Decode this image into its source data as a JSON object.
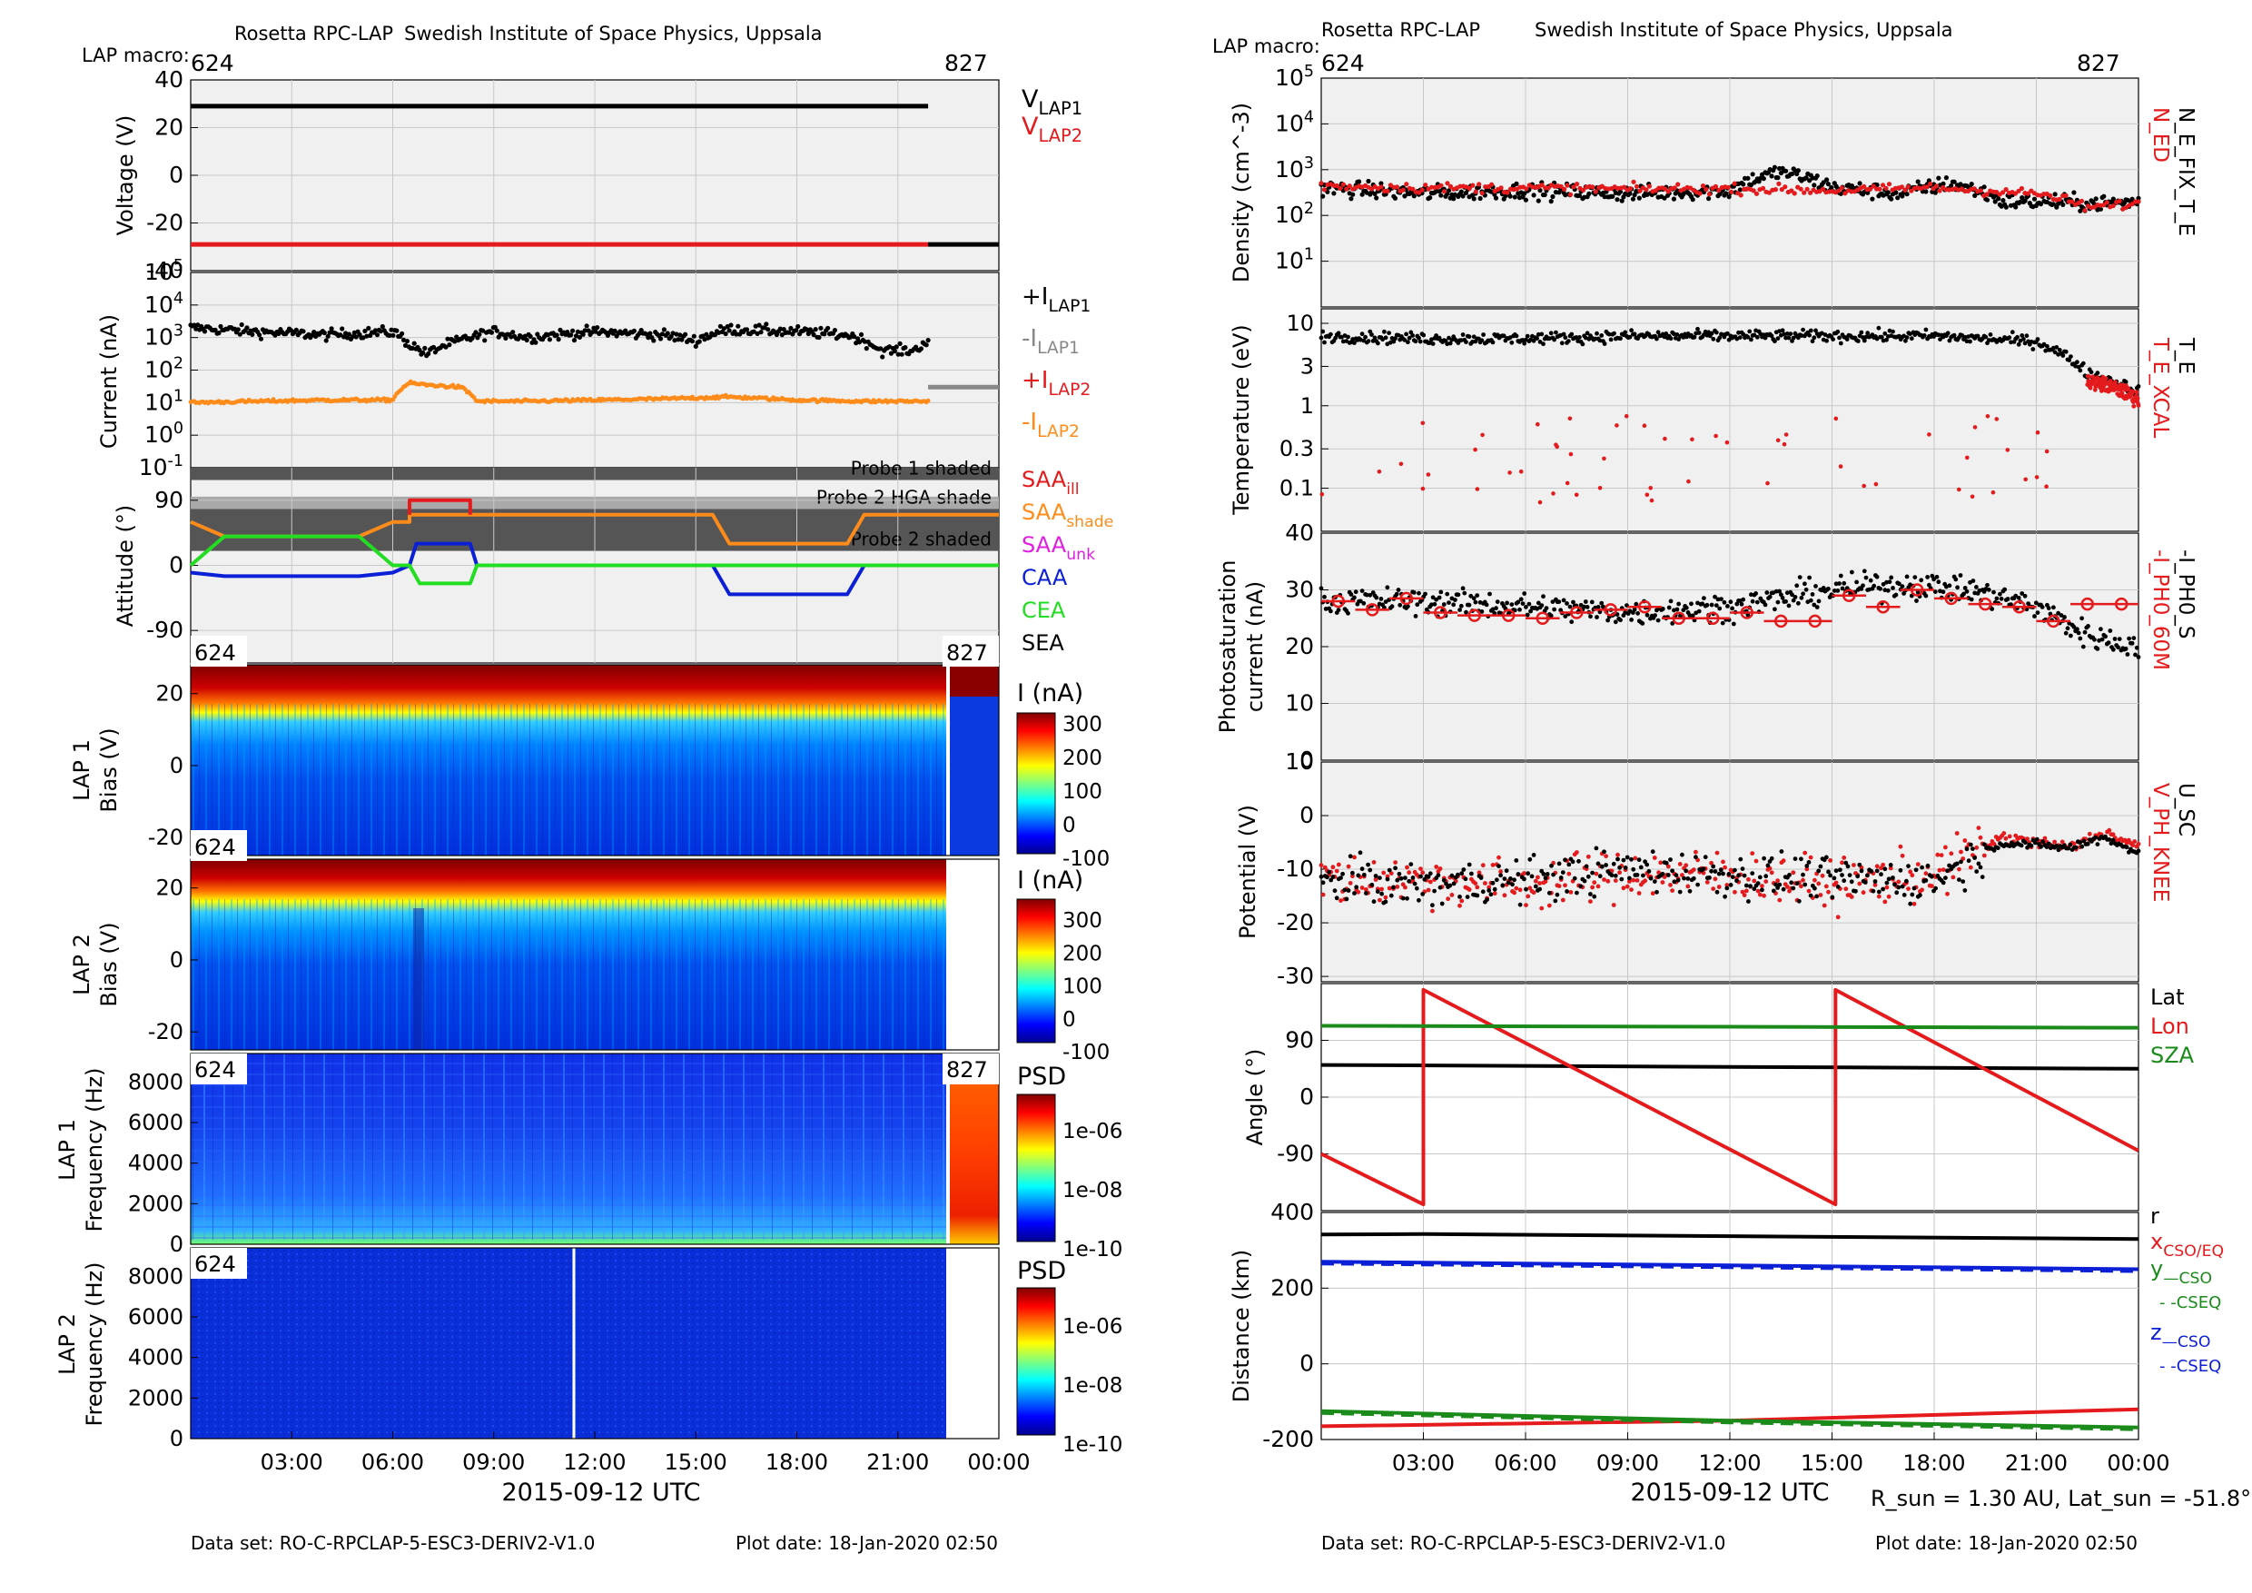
{
  "left": {
    "header_left": "Rosetta RPC-LAP",
    "header_right": "Swedish Institute of Space Physics, Uppsala",
    "macro_label": "LAP macro:",
    "macro_start": "624",
    "macro_end": "827",
    "footer_dataset": "Data set: RO-C-RPCLAP-5-ESC3-DERIV2-V1.0",
    "footer_date": "Plot date: 18-Jan-2020 02:50",
    "xlabel": "2015-09-12 UTC"
  },
  "right": {
    "header_left": "Rosetta RPC-LAP",
    "header_right": "Swedish Institute of Space Physics, Uppsala",
    "macro_label": "LAP macro:",
    "macro_start": "624",
    "macro_end": "827",
    "footer_dataset": "Data set: RO-C-RPCLAP-5-ESC3-DERIV2-V1.0",
    "footer_date": "Plot date: 18-Jan-2020 02:50",
    "xlabel": "2015-09-12 UTC",
    "rsun_text": "R_sun = 1.30 AU, Lat_sun = -51.8°"
  },
  "colors": {
    "black": "#000000",
    "red": "#e41a1c",
    "orange": "#ff8c1a",
    "gray": "#888888",
    "blue": "#0b1fd6",
    "green": "#22dd22",
    "darkgreen": "#1a8a1a",
    "magenta": "#e020e0",
    "panel_bg": "#f0f0f0",
    "shade_dark": "#555555",
    "shade_light": "#a9a9a9"
  },
  "chart_data": [
    {
      "type": "line",
      "id": "voltage",
      "ylabel": "Voltage (V)",
      "ylim": [
        -40,
        40
      ],
      "yticks": [
        "40",
        "20",
        "0",
        "-20",
        "-40"
      ],
      "xlim_hours": [
        0,
        24
      ],
      "xticks": [
        "03:00",
        "06:00",
        "09:00",
        "12:00",
        "15:00",
        "18:00",
        "21:00",
        "00:00"
      ],
      "grid": true,
      "legend": [
        {
          "main": "V",
          "sub": "LAP1",
          "color": "#000000"
        },
        {
          "main": "V",
          "sub": "LAP2",
          "color": "#e41a1c"
        }
      ],
      "series": [
        {
          "name": "V_LAP1",
          "color": "#000000",
          "x": [
            0,
            21.9
          ],
          "y": [
            29,
            29
          ]
        },
        {
          "name": "V_LAP2",
          "color": "#e41a1c",
          "x": [
            0,
            21.9
          ],
          "y": [
            -29,
            -29
          ]
        },
        {
          "name": "V_LAP2 (macro 827)",
          "color": "#000000",
          "x": [
            21.9,
            24
          ],
          "y": [
            -29,
            -29
          ]
        }
      ]
    },
    {
      "type": "scatter",
      "id": "current",
      "yscale": "log",
      "ylabel": "Current (nA)",
      "ylim": [
        0.1,
        100000
      ],
      "yticks": [
        "10^5",
        "10^4",
        "10^3",
        "10^2",
        "10^1",
        "10^0",
        "10^-1"
      ],
      "legend": [
        {
          "main": "+I",
          "sub": "LAP1",
          "color": "#000000"
        },
        {
          "main": "-I",
          "sub": "LAP1",
          "color": "#888888"
        },
        {
          "main": "+I",
          "sub": "LAP2",
          "color": "#e41a1c"
        },
        {
          "main": "-I",
          "sub": "LAP2",
          "color": "#ff8c1a"
        }
      ],
      "series": [
        {
          "name": "+I_LAP1",
          "color": "#000000",
          "x": [
            0,
            2,
            4,
            6,
            6.5,
            7,
            8,
            9,
            10,
            12,
            14,
            15,
            16,
            18,
            19.5,
            20.5,
            21.5,
            21.9
          ],
          "y": [
            2000,
            1500,
            1200,
            1500,
            600,
            300,
            800,
            1500,
            1000,
            1500,
            1200,
            800,
            1800,
            1500,
            1200,
            400,
            400,
            800
          ]
        },
        {
          "name": "-I_LAP2",
          "color": "#ff8c1a",
          "x": [
            0,
            2,
            4,
            6,
            6.5,
            7,
            8,
            8.5,
            10,
            12,
            14,
            16,
            18,
            20,
            21.9
          ],
          "y": [
            10,
            11,
            12,
            12,
            40,
            35,
            30,
            11,
            11,
            12,
            13,
            15,
            12,
            11,
            11
          ]
        },
        {
          "name": "-I_LAP1 (macro 827)",
          "color": "#888888",
          "x": [
            21.9,
            24
          ],
          "y": [
            30,
            30
          ]
        }
      ]
    },
    {
      "type": "line",
      "id": "attitude",
      "ylabel": "Attitude (°)",
      "ylim": [
        -135,
        135
      ],
      "yticks": [
        "90",
        "0",
        "-90"
      ],
      "shading": [
        {
          "label": "Probe 1 shaded",
          "y": [
            118,
            135
          ],
          "color": "#555555"
        },
        {
          "label": "Probe 2 HGA shade",
          "y": [
            78,
            95
          ],
          "color": "#a9a9a9"
        },
        {
          "label": "Probe 2 shaded",
          "y": [
            20,
            78
          ],
          "color": "#555555"
        }
      ],
      "legend": [
        {
          "main": "SAA",
          "sub": "ill",
          "color": "#e41a1c"
        },
        {
          "main": "SAA",
          "sub": "shade",
          "color": "#ff8c1a"
        },
        {
          "main": "SAA",
          "sub": "unk",
          "color": "#e020e0"
        },
        {
          "main": "CAA",
          "sub": "",
          "color": "#0b1fd6"
        },
        {
          "main": "CEA",
          "sub": "",
          "color": "#22dd22"
        },
        {
          "main": "SEA",
          "sub": "",
          "color": "#000000"
        }
      ],
      "series": [
        {
          "name": "SAA_shade",
          "color": "#ff8c1a",
          "x": [
            0,
            1,
            5,
            6,
            6.5,
            6.5,
            8.3,
            8.3,
            9,
            15.5,
            16,
            19.5,
            20,
            24
          ],
          "y": [
            60,
            40,
            40,
            60,
            60,
            70,
            70,
            70,
            70,
            70,
            30,
            30,
            70,
            70
          ]
        },
        {
          "name": "SAA_ill",
          "color": "#e41a1c",
          "x": [
            6.5,
            6.5,
            8.3,
            8.3
          ],
          "y": [
            70,
            90,
            90,
            70
          ]
        },
        {
          "name": "CAA",
          "color": "#0b1fd6",
          "x": [
            0,
            1,
            5,
            6,
            6.5,
            6.7,
            8.3,
            8.5,
            9,
            15.5,
            16,
            19.5,
            20,
            24
          ],
          "y": [
            -10,
            -15,
            -15,
            -10,
            0,
            30,
            30,
            0,
            0,
            0,
            -40,
            -40,
            0,
            0
          ]
        },
        {
          "name": "CEA",
          "color": "#22dd22",
          "x": [
            0,
            1,
            5,
            6,
            6.5,
            6.8,
            8.3,
            8.5,
            24
          ],
          "y": [
            0,
            40,
            40,
            0,
            0,
            -25,
            -25,
            0,
            0
          ]
        }
      ]
    },
    {
      "type": "heatmap",
      "id": "lap1-sweep",
      "ylabel": "Bias (V)",
      "ylabel2": "LAP 1",
      "ylim": [
        -25,
        28
      ],
      "yticks": [
        "20",
        "0",
        "-20"
      ],
      "colorbar": {
        "label": "I (nA)",
        "ticks": [
          "300",
          "200",
          "100",
          "0",
          "-100"
        ],
        "min": -100,
        "max": 350
      },
      "macro_left": "624",
      "macro_right": "827"
    },
    {
      "type": "heatmap",
      "id": "lap2-sweep",
      "ylabel": "Bias (V)",
      "ylabel2": "LAP 2",
      "ylim": [
        -25,
        28
      ],
      "yticks": [
        "20",
        "0",
        "-20"
      ],
      "colorbar": {
        "label": "I (nA)",
        "ticks": [
          "300",
          "200",
          "100",
          "0",
          "-100"
        ],
        "min": -100,
        "max": 350
      },
      "macro_left": "624"
    },
    {
      "type": "heatmap",
      "id": "lap1-psd",
      "ylabel": "Frequency (Hz)",
      "ylabel2": "LAP 1",
      "ylim": [
        0,
        9400
      ],
      "yticks": [
        "8000",
        "6000",
        "4000",
        "2000",
        "0"
      ],
      "colorbar": {
        "label": "PSD",
        "ticks": [
          "1e-06",
          "1e-08",
          "1e-10"
        ]
      },
      "macro_left": "624",
      "macro_right": "827"
    },
    {
      "type": "heatmap",
      "id": "lap2-psd",
      "ylabel": "Frequency (Hz)",
      "ylabel2": "LAP 2",
      "ylim": [
        0,
        9400
      ],
      "yticks": [
        "8000",
        "6000",
        "4000",
        "2000",
        "0"
      ],
      "colorbar": {
        "label": "PSD",
        "ticks": [
          "1e-06",
          "1e-08",
          "1e-10"
        ]
      },
      "macro_left": "624"
    },
    {
      "type": "scatter",
      "id": "density",
      "yscale": "log",
      "ylabel": "Density (cm^-3)",
      "ylim": [
        1,
        100000
      ],
      "yticks": [
        "10^5",
        "10^4",
        "10^3",
        "10^2",
        "10^1"
      ],
      "legend_right": [
        {
          "text": "N_ED",
          "color": "#e41a1c"
        },
        {
          "text": "N_E_FIX_T_E",
          "color": "#000000"
        }
      ],
      "series": [
        {
          "name": "N_E_FIX_T_E",
          "color": "#000000",
          "x": [
            0,
            3,
            6,
            9,
            12,
            13.5,
            15,
            17,
            18.5,
            20,
            21.5,
            22.5,
            24
          ],
          "y": [
            400,
            300,
            350,
            300,
            350,
            900,
            400,
            300,
            500,
            200,
            200,
            180,
            200
          ]
        },
        {
          "name": "N_ED",
          "color": "#e41a1c",
          "x": [
            0,
            3,
            6,
            9,
            12,
            15,
            18,
            21,
            22.5,
            24
          ],
          "y": [
            450,
            400,
            400,
            380,
            380,
            350,
            400,
            300,
            150,
            180
          ]
        }
      ]
    },
    {
      "type": "scatter",
      "id": "temperature",
      "yscale": "log",
      "ylabel": "Temperature (eV)",
      "ylim": [
        0.03,
        15
      ],
      "yticks": [
        "10",
        "3",
        "1",
        "0.3",
        "0.1"
      ],
      "legend_right": [
        {
          "text": "T_E_XCAL",
          "color": "#e41a1c"
        },
        {
          "text": "T_E",
          "color": "#000000"
        }
      ],
      "series": [
        {
          "name": "T_E",
          "color": "#000000",
          "x": [
            0,
            3,
            6,
            9,
            12,
            15,
            18,
            21,
            22.5,
            24
          ],
          "y": [
            7,
            6.5,
            6.5,
            7,
            7,
            7,
            7,
            6,
            2.5,
            1.5
          ]
        },
        {
          "name": "T_E_XCAL",
          "color": "#e41a1c",
          "x": [
            22.5,
            23,
            23.5,
            24
          ],
          "y": [
            2,
            1.8,
            1.5,
            1.2
          ]
        }
      ]
    },
    {
      "type": "scatter",
      "id": "photosat",
      "ylabel": "Photosaturation",
      "ylabel2": "current (nA)",
      "ylim": [
        0,
        40
      ],
      "yticks": [
        "40",
        "30",
        "20",
        "10",
        "0"
      ],
      "legend_right": [
        {
          "text": "-I_PH0_60M",
          "color": "#e41a1c"
        },
        {
          "text": "-I_PH0_S",
          "color": "#000000"
        }
      ],
      "series": [
        {
          "name": "-I_PH0_S",
          "color": "#000000",
          "x": [
            0,
            3,
            6,
            9,
            12,
            15,
            17,
            19,
            21,
            22.5,
            24
          ],
          "y": [
            28,
            28,
            27,
            26,
            27,
            30,
            31,
            30,
            27,
            22,
            20
          ]
        },
        {
          "name": "-I_PH0_60M",
          "color": "#e41a1c",
          "x": [
            0.5,
            1.5,
            2.5,
            3.5,
            4.5,
            5.5,
            6.5,
            7.5,
            8.5,
            9.5,
            10.5,
            11.5,
            12.5,
            13.5,
            14.5,
            15.5,
            16.5,
            17.5,
            18.5,
            19.5,
            20.5,
            21.5,
            22.5,
            23.5
          ],
          "y": [
            28,
            26.5,
            28.5,
            26,
            25.5,
            25.5,
            25,
            26,
            26.5,
            27,
            25,
            25,
            26,
            24.5,
            24.5,
            29,
            27,
            30,
            28.5,
            27.5,
            27,
            24.5,
            27.5,
            27.5
          ]
        }
      ]
    },
    {
      "type": "scatter",
      "id": "potential",
      "ylabel": "Potential (V)",
      "ylim": [
        -31,
        10
      ],
      "yticks": [
        "10",
        "0",
        "-10",
        "-20",
        "-30"
      ],
      "legend_right": [
        {
          "text": "V_PH_KNEE",
          "color": "#e41a1c"
        },
        {
          "text": "U_SC",
          "color": "#000000"
        }
      ],
      "series": [
        {
          "name": "U_SC",
          "color": "#000000",
          "x": [
            0,
            3,
            6,
            9,
            12,
            15,
            18,
            20,
            22,
            23,
            24
          ],
          "y": [
            -12,
            -13,
            -12,
            -10,
            -11,
            -12,
            -12,
            -5,
            -6,
            -4,
            -7
          ]
        },
        {
          "name": "V_PH_KNEE",
          "color": "#e41a1c",
          "x": [
            0,
            3,
            6,
            9,
            12,
            15,
            18,
            20,
            22,
            23,
            24
          ],
          "y": [
            -12,
            -12,
            -13,
            -11,
            -11,
            -13,
            -11,
            -4,
            -6,
            -3,
            -6
          ]
        }
      ]
    },
    {
      "type": "line",
      "id": "angle",
      "ylabel": "Angle (°)",
      "ylim": [
        -180,
        180
      ],
      "yticks": [
        "90",
        "0",
        "-90"
      ],
      "legend_right": [
        {
          "text": "Lat",
          "color": "#000000"
        },
        {
          "text": "Lon",
          "color": "#e41a1c"
        },
        {
          "text": "SZA",
          "color": "#1a8a1a"
        }
      ],
      "series": [
        {
          "name": "Lat",
          "color": "#000000",
          "x": [
            0,
            24
          ],
          "y": [
            51,
            45
          ]
        },
        {
          "name": "Lon",
          "color": "#e41a1c",
          "x": [
            0,
            3,
            3,
            15.1,
            15.1,
            24
          ],
          "y": [
            -90,
            -170,
            170,
            -170,
            170,
            -85
          ]
        },
        {
          "name": "SZA",
          "color": "#1a8a1a",
          "x": [
            0,
            24
          ],
          "y": [
            113,
            110
          ]
        }
      ]
    },
    {
      "type": "line",
      "id": "distance",
      "ylabel": "Distance (km)",
      "ylim": [
        -200,
        400
      ],
      "yticks": [
        "400",
        "200",
        "0",
        "-200"
      ],
      "legend_right": [
        {
          "text": "r",
          "color": "#000000"
        },
        {
          "text": "x_CSO/EQ",
          "color": "#e41a1c"
        },
        {
          "text": "y_—CSO",
          "color": "#1a8a1a"
        },
        {
          "text": "- -CSEQ",
          "color": "#1a8a1a"
        },
        {
          "text": "z_—CSO",
          "color": "#0b1fd6"
        },
        {
          "text": "- -CSEQ",
          "color": "#0b1fd6"
        }
      ],
      "series": [
        {
          "name": "r",
          "color": "#000000",
          "x": [
            0,
            3,
            24
          ],
          "y": [
            342,
            343,
            330
          ]
        },
        {
          "name": "x",
          "color": "#e41a1c",
          "x": [
            0,
            12,
            24
          ],
          "y": [
            -165,
            -150,
            -120
          ]
        },
        {
          "name": "y",
          "color": "#1a8a1a",
          "x": [
            0,
            12,
            24
          ],
          "y": [
            -125,
            -150,
            -168
          ]
        },
        {
          "name": "z",
          "color": "#0b1fd6",
          "x": [
            0,
            12,
            24
          ],
          "y": [
            270,
            260,
            250
          ]
        }
      ]
    }
  ]
}
